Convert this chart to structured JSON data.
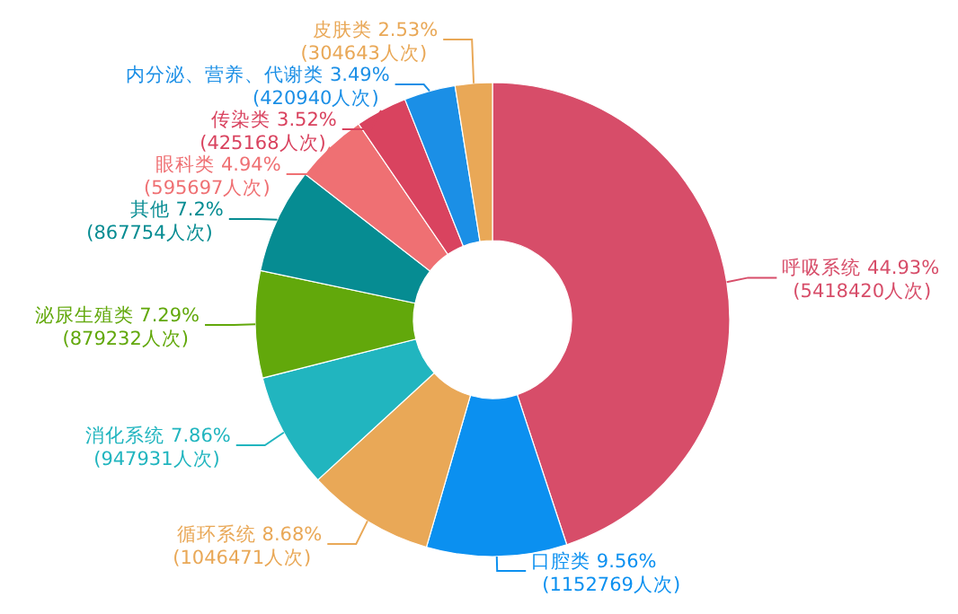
{
  "chart_data": {
    "type": "donut",
    "categories": [
      "呼吸系统",
      "口腔类",
      "循环系统",
      "消化系统",
      "泌尿生殖类",
      "其他",
      "眼科类",
      "传染类",
      "内分泌、营养、代谢类",
      "皮肤类"
    ],
    "values": [
      5418420,
      1152769,
      1046471,
      947931,
      879232,
      867754,
      595697,
      425168,
      420940,
      304643
    ],
    "value_labels": [
      "44.93%\n(5418420人次)",
      "9.56%\n(1152769人次)",
      "8.68%\n(1046471人次)",
      "7.86%\n(947931人次)",
      "7.29%\n(879232人次)",
      "7.2%\n(867754人次)",
      "4.94%\n(595697人次)",
      "3.52%\n(425168人次)",
      "3.49%\n(420940人次)",
      "2.53%\n(304643人次)"
    ],
    "colors": [
      "#d74d69",
      "#0b90f0",
      "#e9a857",
      "#21b5bf",
      "#62a80b",
      "#068c92",
      "#ef7073",
      "#d9435f",
      "#1b8fe6",
      "#e9a857"
    ]
  }
}
